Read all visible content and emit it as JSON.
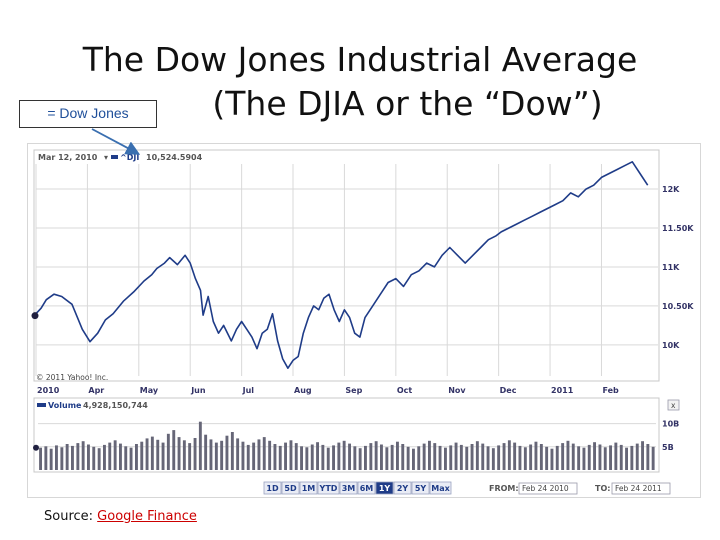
{
  "slide": {
    "title_line_1": "The Dow Jones Industrial Average",
    "title_line_2": "(The DJIA or the “Dow”)",
    "callout": "= Dow Jones",
    "source_label": "Source:",
    "source_link": "Google Finance"
  },
  "chart_data": {
    "type": "line",
    "header": {
      "date": "Mar 12, 2010",
      "marker": "▾",
      "series_label": "^DJI",
      "series_value": "10,524.5904"
    },
    "x_tick_labels": [
      "2010",
      "Apr",
      "May",
      "Jun",
      "Jul",
      "Aug",
      "Sep",
      "Oct",
      "Nov",
      "Dec",
      "2011",
      "Feb"
    ],
    "y_tick_labels": [
      "12K",
      "11.50K",
      "11K",
      "10.50K",
      "10K"
    ],
    "y_ticks": [
      12000,
      11500,
      11000,
      10500,
      10000
    ],
    "ylim": [
      9600,
      12450
    ],
    "xlim": [
      0,
      12.1
    ],
    "watermark": "© 2011 Yahoo! Inc.",
    "series": [
      {
        "values": [
          [
            0.0,
            10400
          ],
          [
            0.1,
            10470
          ],
          [
            0.2,
            10580
          ],
          [
            0.35,
            10650
          ],
          [
            0.5,
            10620
          ],
          [
            0.7,
            10520
          ],
          [
            0.9,
            10200
          ],
          [
            1.05,
            10040
          ],
          [
            1.2,
            10150
          ],
          [
            1.35,
            10320
          ],
          [
            1.5,
            10400
          ],
          [
            1.7,
            10560
          ],
          [
            1.9,
            10680
          ],
          [
            2.1,
            10820
          ],
          [
            2.25,
            10900
          ],
          [
            2.35,
            10980
          ],
          [
            2.5,
            11050
          ],
          [
            2.6,
            11120
          ],
          [
            2.75,
            11030
          ],
          [
            2.9,
            11150
          ],
          [
            3.0,
            11050
          ],
          [
            3.1,
            10850
          ],
          [
            3.2,
            10700
          ],
          [
            3.25,
            10380
          ],
          [
            3.35,
            10620
          ],
          [
            3.45,
            10300
          ],
          [
            3.55,
            10150
          ],
          [
            3.65,
            10250
          ],
          [
            3.8,
            10050
          ],
          [
            3.9,
            10200
          ],
          [
            4.0,
            10300
          ],
          [
            4.1,
            10200
          ],
          [
            4.2,
            10100
          ],
          [
            4.3,
            9950
          ],
          [
            4.4,
            10150
          ],
          [
            4.5,
            10200
          ],
          [
            4.6,
            10400
          ],
          [
            4.7,
            10050
          ],
          [
            4.8,
            9820
          ],
          [
            4.9,
            9700
          ],
          [
            5.0,
            9800
          ],
          [
            5.1,
            9850
          ],
          [
            5.2,
            10150
          ],
          [
            5.3,
            10350
          ],
          [
            5.4,
            10500
          ],
          [
            5.5,
            10450
          ],
          [
            5.6,
            10600
          ],
          [
            5.7,
            10650
          ],
          [
            5.8,
            10450
          ],
          [
            5.9,
            10300
          ],
          [
            6.0,
            10450
          ],
          [
            6.1,
            10350
          ],
          [
            6.2,
            10150
          ],
          [
            6.3,
            10100
          ],
          [
            6.4,
            10350
          ],
          [
            6.55,
            10500
          ],
          [
            6.7,
            10650
          ],
          [
            6.85,
            10800
          ],
          [
            7.0,
            10850
          ],
          [
            7.15,
            10750
          ],
          [
            7.3,
            10900
          ],
          [
            7.45,
            10950
          ],
          [
            7.6,
            11050
          ],
          [
            7.75,
            11000
          ],
          [
            7.9,
            11150
          ],
          [
            8.05,
            11250
          ],
          [
            8.2,
            11150
          ],
          [
            8.35,
            11050
          ],
          [
            8.5,
            11150
          ],
          [
            8.65,
            11250
          ],
          [
            8.8,
            11350
          ],
          [
            8.95,
            11400
          ],
          [
            9.05,
            11450
          ],
          [
            9.2,
            11500
          ],
          [
            9.35,
            11550
          ],
          [
            9.5,
            11600
          ],
          [
            9.65,
            11650
          ],
          [
            9.8,
            11700
          ],
          [
            9.95,
            11750
          ],
          [
            10.1,
            11800
          ],
          [
            10.25,
            11850
          ],
          [
            10.4,
            11950
          ],
          [
            10.55,
            11900
          ],
          [
            10.7,
            12000
          ],
          [
            10.85,
            12050
          ],
          [
            11.0,
            12150
          ],
          [
            11.15,
            12200
          ],
          [
            11.3,
            12250
          ],
          [
            11.45,
            12300
          ],
          [
            11.6,
            12350
          ],
          [
            11.75,
            12200
          ],
          [
            11.9,
            12050
          ]
        ]
      }
    ],
    "volume": {
      "label": "Volume",
      "value": "4,928,150,744",
      "y_tick_labels": [
        "10B",
        "5B"
      ],
      "y_ticks": [
        10,
        5
      ],
      "ylim": [
        0,
        12.5
      ],
      "values": [
        4.8,
        5.1,
        4.6,
        5.3,
        4.9,
        5.6,
        5.2,
        5.8,
        6.2,
        5.5,
        5.0,
        4.7,
        5.4,
        5.9,
        6.4,
        5.7,
        5.1,
        4.8,
        5.6,
        6.1,
        6.8,
        7.2,
        6.5,
        5.9,
        7.8,
        8.6,
        7.1,
        6.4,
        5.8,
        6.9,
        10.4,
        7.6,
        6.6,
        5.9,
        6.3,
        7.4,
        8.2,
        6.8,
        6.1,
        5.4,
        5.9,
        6.6,
        7.1,
        6.3,
        5.6,
        5.2,
        5.9,
        6.4,
        5.8,
        5.1,
        4.9,
        5.5,
        6.0,
        5.4,
        4.8,
        5.3,
        5.9,
        6.3,
        5.7,
        5.1,
        4.7,
        5.2,
        5.8,
        6.2,
        5.5,
        4.9,
        5.4,
        6.1,
        5.6,
        5.0,
        4.6,
        5.1,
        5.7,
        6.3,
        5.8,
        5.2,
        4.8,
        5.3,
        5.9,
        5.4,
        5.0,
        5.6,
        6.2,
        5.7,
        5.1,
        4.7,
        5.3,
        5.8,
        6.4,
        5.9,
        5.2,
        4.9,
        5.5,
        6.1,
        5.6,
        5.0,
        4.6,
        5.2,
        5.8,
        6.3,
        5.7,
        5.1,
        4.8,
        5.4,
        6.0,
        5.5,
        4.9,
        5.3,
        5.9,
        5.4,
        4.8,
        5.2,
        5.7,
        6.2,
        5.6,
        5.0
      ]
    },
    "range_buttons": [
      "1D",
      "5D",
      "1M",
      "YTD",
      "3M",
      "6M",
      "1Y",
      "2Y",
      "5Y",
      "Max"
    ],
    "active_range": "1Y",
    "from_label": "FROM:",
    "from_value": "Feb 24 2010",
    "to_label": "TO:",
    "to_value": "Feb 24 2011",
    "close_button_label": "x",
    "colors": {
      "line": "#1f3c88",
      "grid": "#d9d9d9",
      "volume_bar": "#666677",
      "active_button": "#1f3c88",
      "callout_arrow": "#3a6fb0"
    }
  }
}
